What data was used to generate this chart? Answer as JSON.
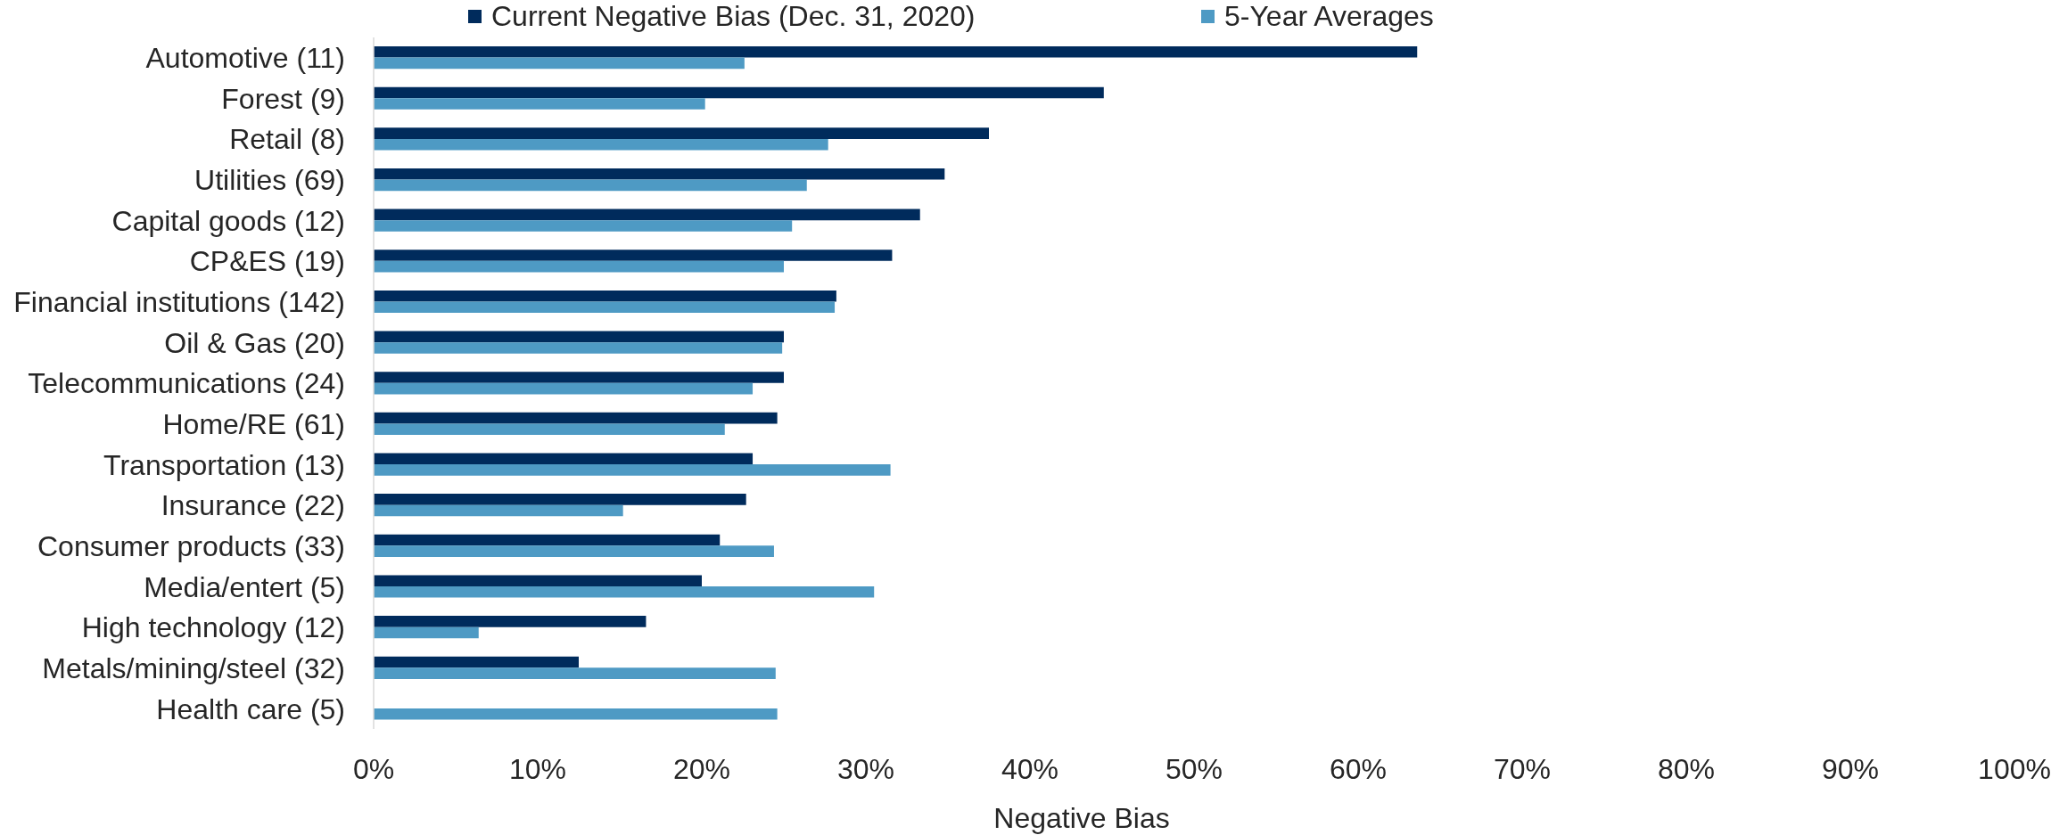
{
  "chart_data": {
    "type": "bar",
    "orientation": "horizontal",
    "categories": [
      "Automotive (11)",
      "Forest (9)",
      "Retail (8)",
      "Utilities (69)",
      "Capital goods (12)",
      "CP&ES (19)",
      "Financial institutions (142)",
      "Oil & Gas (20)",
      "Telecommunications (24)",
      "Home/RE (61)",
      "Transportation (13)",
      "Insurance (22)",
      "Consumer products (33)",
      "Media/entert (5)",
      "High technology (12)",
      "Metals/mining/steel (32)",
      "Health care (5)"
    ],
    "series": [
      {
        "name": "Current Negative Bias (Dec. 31, 2020)",
        "color": "#002b5c",
        "values": [
          63.6,
          44.5,
          37.5,
          34.8,
          33.3,
          31.6,
          28.2,
          25.0,
          25.0,
          24.6,
          23.1,
          22.7,
          21.1,
          20.0,
          16.6,
          12.5,
          null
        ]
      },
      {
        "name": "5-Year Averages",
        "color": "#4e9ac4",
        "values": [
          22.6,
          20.2,
          27.7,
          26.4,
          25.5,
          25.0,
          28.1,
          24.9,
          23.1,
          21.4,
          31.5,
          15.2,
          24.4,
          30.5,
          6.4,
          24.5,
          24.6
        ]
      }
    ],
    "xlabel": "Negative Bias",
    "xlim": [
      0,
      100
    ],
    "xticks": [
      {
        "value": 0,
        "label": "0%"
      },
      {
        "value": 10,
        "label": "10%"
      },
      {
        "value": 20,
        "label": "20%"
      },
      {
        "value": 30,
        "label": "30%"
      },
      {
        "value": 40,
        "label": "40%"
      },
      {
        "value": 50,
        "label": "50%"
      },
      {
        "value": 60,
        "label": "60%"
      },
      {
        "value": 70,
        "label": "70%"
      },
      {
        "value": 80,
        "label": "80%"
      },
      {
        "value": 90,
        "label": "90%"
      },
      {
        "value": 100,
        "label": "100%"
      }
    ],
    "legend": "top"
  }
}
